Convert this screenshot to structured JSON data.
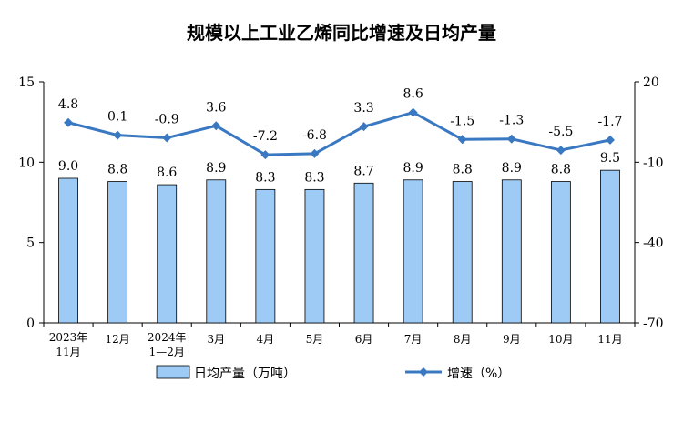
{
  "chart_data": {
    "type": "bar",
    "title": "规模以上工业乙烯同比增速及日均产量",
    "categories": [
      [
        "2023年",
        "11月"
      ],
      [
        "12月"
      ],
      [
        "2024年",
        "1—2月"
      ],
      [
        "3月"
      ],
      [
        "4月"
      ],
      [
        "5月"
      ],
      [
        "6月"
      ],
      [
        "7月"
      ],
      [
        "8月"
      ],
      [
        "9月"
      ],
      [
        "10月"
      ],
      [
        "11月"
      ]
    ],
    "series": [
      {
        "name": "日均产量（万吨）",
        "type": "bar",
        "axis": "left",
        "values": [
          9.0,
          8.8,
          8.6,
          8.9,
          8.3,
          8.3,
          8.7,
          8.9,
          8.8,
          8.9,
          8.8,
          9.5
        ],
        "labels": [
          "9.0",
          "8.8",
          "8.6",
          "8.9",
          "8.3",
          "8.3",
          "8.7",
          "8.9",
          "8.8",
          "8.9",
          "8.8",
          "9.5"
        ],
        "color": "#9dcbf5",
        "stroke": "#000000"
      },
      {
        "name": "增速（%）",
        "type": "line",
        "axis": "right",
        "values": [
          4.8,
          0.1,
          -0.9,
          3.6,
          -7.2,
          -6.8,
          3.3,
          8.6,
          -1.5,
          -1.3,
          -5.5,
          -1.7
        ],
        "labels": [
          "4.8",
          "0.1",
          "-0.9",
          "3.6",
          "-7.2",
          "-6.8",
          "3.3",
          "8.6",
          "-1.5",
          "-1.3",
          "-5.5",
          "-1.7"
        ],
        "color": "#3a78c2"
      }
    ],
    "y_left": {
      "min": 0,
      "max": 15,
      "ticks": [
        0,
        5,
        10,
        15
      ],
      "tick_labels": [
        "0",
        "5",
        "10",
        "15"
      ]
    },
    "y_right": {
      "min": -70,
      "max": 20,
      "ticks": [
        -70,
        -40,
        -10,
        20
      ],
      "tick_labels": [
        "-70",
        "-40",
        "-10",
        "20"
      ]
    },
    "legend": {
      "placement": "bottom",
      "bar_label": "日均产量（万吨）",
      "line_label": "增速（%）"
    },
    "grid": false
  }
}
